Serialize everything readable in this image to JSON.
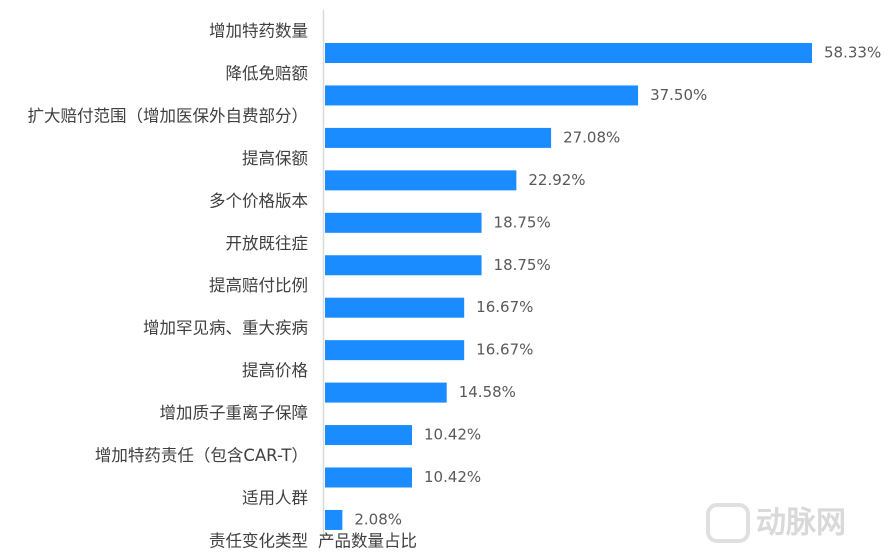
{
  "chart_data": {
    "type": "barh",
    "categories": [
      "增加特药数量",
      "降低免赔额",
      "扩大赔付范围（增加医保外自费部分）",
      "提高保额",
      "多个价格版本",
      "开放既往症",
      "提高赔付比例",
      "增加罕见病、重大疾病",
      "提高价格",
      "增加质子重离子保障",
      "增加特药责任（包含CAR-T）",
      "适用人群",
      "责任变化类型"
    ],
    "values": [
      58.33,
      37.5,
      27.08,
      22.92,
      18.75,
      18.75,
      16.67,
      16.67,
      14.58,
      10.42,
      10.42,
      2.08,
      null
    ],
    "value_labels": [
      "58.33%",
      "37.50%",
      "27.08%",
      "22.92%",
      "18.75%",
      "18.75%",
      "16.67%",
      "16.67%",
      "14.58%",
      "10.42%",
      "10.42%",
      "2.08%",
      null
    ],
    "color": "#1a8cff",
    "x_label": "产品数量占比",
    "watermark": "动脉网"
  }
}
